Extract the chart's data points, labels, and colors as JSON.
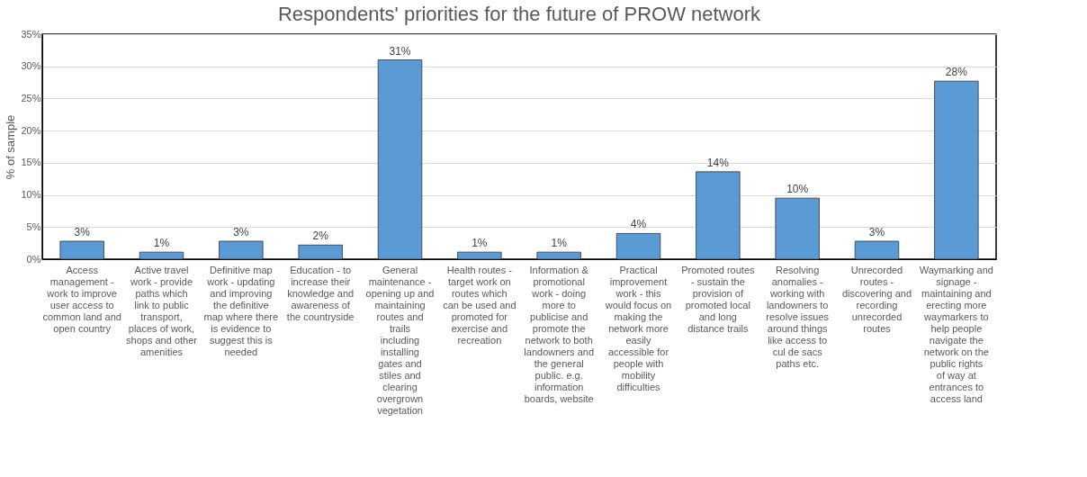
{
  "chart_data": {
    "type": "bar",
    "title": "Respondents' priorities for the future of PROW network",
    "ylabel": "% of sample",
    "categories": [
      "Access management - work to improve user access to common land and open country",
      "Active travel work - provide paths which link to public transport, places of work, shops and other amenities",
      "Definitive map work - updating and improving the definitive map where there is evidence to suggest this is needed",
      "Education - to increase their knowledge and awareness of the countryside",
      "General maintenance - opening up and maintaining routes and trails including installing gates and stiles and clearing overgrown vegetation",
      "Health routes - target work on routes which can be used and promoted for exercise and recreation",
      "Information & promotional work - doing more to publicise and promote the network to both landowners and the general public. e.g. information boards, website",
      "Practical improvement work - this would focus on making the network more easily accessible for people with mobility difficulties",
      "Promoted routes - sustain the provision of promoted local and long distance trails",
      "Resolving anomalies - working with landowners to resolve issues around things like access to cul de sacs paths etc.",
      "Unrecorded routes - discovering and recording unrecorded routes",
      "Waymarking and signage - maintaining and erecting more waymarkers to help people navigate the network on the public rights of way at entrances to access land"
    ],
    "values": [
      2.8,
      1.1,
      2.8,
      2.2,
      31.0,
      1.1,
      1.1,
      4.0,
      13.6,
      9.5,
      2.8,
      27.7
    ],
    "value_labels": [
      "3%",
      "1%",
      "3%",
      "2%",
      "31%",
      "1%",
      "1%",
      "4%",
      "14%",
      "10%",
      "3%",
      "28%"
    ],
    "color": "#5b9bd5",
    "ylim": [
      0,
      35
    ],
    "yticks": [
      {
        "value": 0,
        "label": "0%"
      },
      {
        "value": 5,
        "label": "5%"
      },
      {
        "value": 10,
        "label": "10%"
      },
      {
        "value": 15,
        "label": "15%"
      },
      {
        "value": 20,
        "label": "20%"
      },
      {
        "value": 25,
        "label": "25%"
      },
      {
        "value": 30,
        "label": "30%"
      },
      {
        "value": 35,
        "label": "35%"
      }
    ],
    "grid": "y"
  }
}
